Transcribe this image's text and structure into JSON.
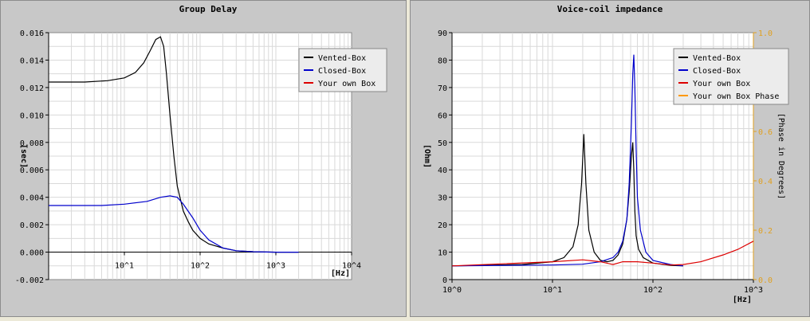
{
  "chart_data": [
    {
      "type": "line",
      "title": "Group Delay",
      "xlabel": "[Hz]",
      "ylabel": "[sec]",
      "xscale": "log",
      "xlim": [
        1,
        10000
      ],
      "ylim": [
        -0.002,
        0.016
      ],
      "grid": true,
      "legend_position": "top-right",
      "x_ticks": [
        {
          "value": 10,
          "label": "10^1"
        },
        {
          "value": 100,
          "label": "10^2"
        },
        {
          "value": 1000,
          "label": "10^3"
        },
        {
          "value": 10000,
          "label": "10^4"
        }
      ],
      "y_ticks": [
        "-0.002",
        "0.000",
        "0.002",
        "0.004",
        "0.006",
        "0.008",
        "0.010",
        "0.012",
        "0.014",
        "0.016"
      ],
      "series": [
        {
          "name": "Vented-Box",
          "color": "#000000",
          "x": [
            1,
            3,
            6,
            10,
            14,
            18,
            22,
            26,
            30,
            33,
            36,
            40,
            45,
            50,
            60,
            70,
            80,
            100,
            130,
            200,
            300,
            500,
            1000,
            2000
          ],
          "y": [
            0.0124,
            0.0124,
            0.0125,
            0.0127,
            0.0131,
            0.0138,
            0.0147,
            0.0155,
            0.0157,
            0.015,
            0.013,
            0.01,
            0.007,
            0.0048,
            0.003,
            0.0022,
            0.0016,
            0.001,
            0.0006,
            0.0003,
            0.0001,
            3e-05,
            0.0,
            0.0
          ]
        },
        {
          "name": "Closed-Box",
          "color": "#0000cc",
          "x": [
            1,
            5,
            10,
            20,
            30,
            40,
            50,
            60,
            80,
            100,
            130,
            200,
            300,
            500,
            1000,
            2000
          ],
          "y": [
            0.0034,
            0.0034,
            0.0035,
            0.0037,
            0.004,
            0.0041,
            0.004,
            0.0035,
            0.0025,
            0.0016,
            0.0009,
            0.0003,
            0.0001,
            3e-05,
            0.0,
            0.0
          ]
        },
        {
          "name": "Your own Box",
          "color": "#dd0000",
          "x": [],
          "y": []
        }
      ]
    },
    {
      "type": "line",
      "title": "Voice-coil impedance",
      "xlabel": "[Hz]",
      "ylabel": "[Ohm]",
      "y2label": "[Phase in Degrees]",
      "xscale": "log",
      "xlim": [
        1,
        1000
      ],
      "ylim": [
        0,
        90
      ],
      "y2lim": [
        0,
        1.0
      ],
      "grid": true,
      "legend_position": "top-right",
      "x_ticks": [
        {
          "value": 1,
          "label": "10^0"
        },
        {
          "value": 10,
          "label": "10^1"
        },
        {
          "value": 100,
          "label": "10^2"
        },
        {
          "value": 1000,
          "label": "10^3"
        }
      ],
      "y_ticks": [
        "0",
        "10",
        "20",
        "30",
        "40",
        "50",
        "60",
        "70",
        "80",
        "90"
      ],
      "y2_ticks": [
        "0.0",
        "0.2",
        "0.4",
        "0.6",
        "0.8",
        "1.0"
      ],
      "series": [
        {
          "name": "Vented-Box",
          "color": "#000000",
          "x": [
            1,
            5,
            10,
            13,
            16,
            18,
            19.5,
            20.5,
            21.5,
            23,
            26,
            30,
            35,
            40,
            45,
            50,
            55,
            58,
            61,
            63,
            64.5,
            66,
            68,
            72,
            80,
            100,
            150,
            200
          ],
          "y": [
            5,
            5.5,
            6.5,
            8,
            12,
            20,
            35,
            53,
            35,
            18,
            10,
            7,
            6.5,
            7,
            9,
            13,
            22,
            32,
            45,
            50,
            40,
            25,
            16,
            11,
            8,
            6,
            5.2,
            5
          ]
        },
        {
          "name": "Closed-Box",
          "color": "#0000cc",
          "x": [
            1,
            10,
            20,
            30,
            40,
            45,
            50,
            55,
            58,
            61,
            63,
            64.5,
            66,
            68,
            70,
            75,
            85,
            100,
            150,
            200
          ],
          "y": [
            5,
            5.3,
            5.6,
            6.5,
            8,
            10,
            14,
            22,
            35,
            57,
            75,
            82,
            70,
            48,
            30,
            18,
            10,
            7,
            5.5,
            5
          ]
        },
        {
          "name": "Your own Box",
          "color": "#dd0000",
          "x": [
            1,
            10,
            20,
            30,
            40,
            50,
            70,
            100,
            150,
            200,
            300,
            500,
            700,
            1000
          ],
          "y": [
            5,
            6.5,
            7.2,
            6.5,
            5.5,
            6.5,
            6.5,
            6,
            5.3,
            5.5,
            6.5,
            9,
            11,
            14
          ]
        },
        {
          "name": "Your own Box Phase",
          "color": "#ff9900",
          "x": [],
          "y": []
        }
      ]
    }
  ]
}
